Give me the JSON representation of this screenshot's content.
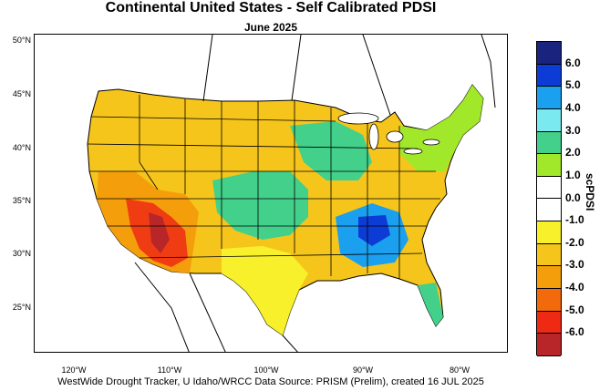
{
  "title": "Continental United States - Self Calibrated PDSI",
  "subtitle": "June 2025",
  "footer": "WestWide Drought Tracker, U Idaho/WRCC Data Source: PRISM (Prelim), created 16 JUL 2025",
  "latitude_labels": [
    "50°N",
    "45°N",
    "40°N",
    "35°N",
    "30°N",
    "25°N"
  ],
  "longitude_labels": [
    "120°W",
    "110°W",
    "100°W",
    "90°W",
    "80°W"
  ],
  "colorbar": {
    "title": "scPDSI",
    "labels": [
      "6.0",
      "5.0",
      "4.0",
      "3.0",
      "2.0",
      "1.0",
      "0.0",
      "-1.0",
      "-2.0",
      "-3.0",
      "-4.0",
      "-5.0",
      "-6.0"
    ],
    "colors": [
      "#1a237e",
      "#0d3bd6",
      "#1aa0ee",
      "#7ae9f0",
      "#43d08a",
      "#a2e82a",
      "#ffffff",
      "#ffffff",
      "#f7f02a",
      "#f6c51c",
      "#f59e0b",
      "#f26a0c",
      "#ee2a14",
      "#b8262a"
    ]
  },
  "legend_colors": {
    "wet_extreme": "#1a237e",
    "dry_extreme": "#b8262a",
    "neutral": "#ffffff"
  }
}
